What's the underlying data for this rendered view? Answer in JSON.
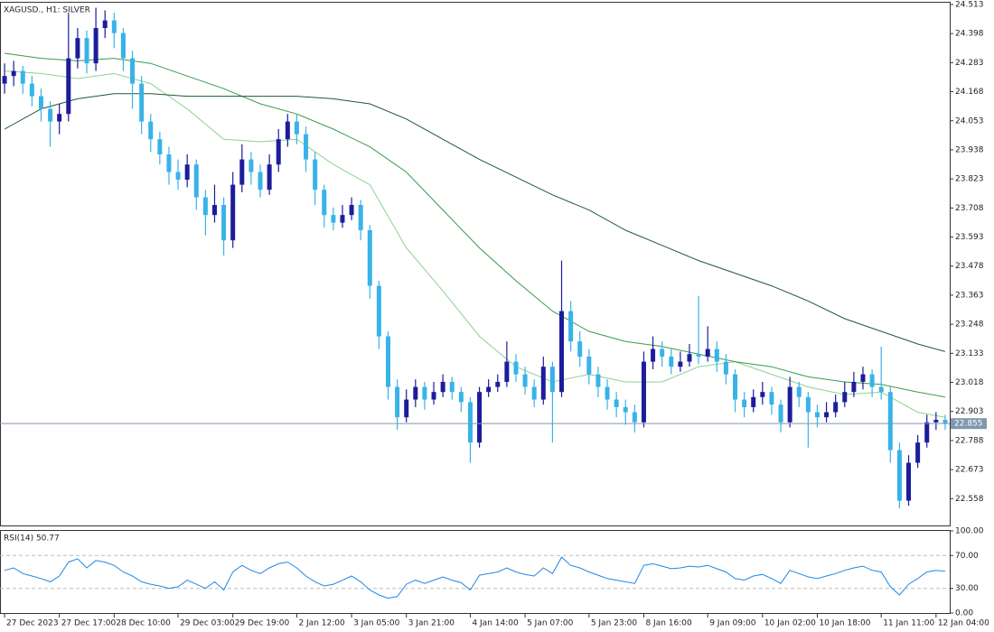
{
  "chart_data": [
    {
      "type": "candlestick",
      "title": "XAGUSD., H1: SILVER",
      "bull_color": "#1c1c9c",
      "bear_color": "#38b3e8",
      "xlim": [
        -0.5,
        103.5
      ],
      "ylim": [
        22.452,
        24.52
      ],
      "yticks": [
        24.513,
        24.398,
        24.283,
        24.168,
        24.053,
        23.938,
        23.823,
        23.708,
        23.593,
        23.478,
        23.363,
        23.248,
        23.133,
        23.018,
        22.903,
        22.788,
        22.673,
        22.558
      ],
      "last_price": 22.855,
      "last_price_color": "#7f98ad",
      "candles": [
        [
          24.2,
          24.28,
          24.16,
          24.23
        ],
        [
          24.23,
          24.29,
          24.19,
          24.25
        ],
        [
          24.25,
          24.27,
          24.16,
          24.2
        ],
        [
          24.2,
          24.23,
          24.11,
          24.15
        ],
        [
          24.15,
          24.18,
          24.05,
          24.1
        ],
        [
          24.1,
          24.13,
          23.95,
          24.05
        ],
        [
          24.05,
          24.12,
          24.0,
          24.08
        ],
        [
          24.08,
          24.48,
          24.05,
          24.3
        ],
        [
          24.3,
          24.42,
          24.26,
          24.38
        ],
        [
          24.38,
          24.41,
          24.24,
          24.28
        ],
        [
          24.28,
          24.5,
          24.25,
          24.42
        ],
        [
          24.42,
          24.49,
          24.38,
          24.45
        ],
        [
          24.45,
          24.48,
          24.34,
          24.4
        ],
        [
          24.4,
          24.42,
          24.25,
          24.3
        ],
        [
          24.3,
          24.33,
          24.1,
          24.2
        ],
        [
          24.2,
          24.23,
          24.0,
          24.05
        ],
        [
          24.05,
          24.08,
          23.93,
          23.98
        ],
        [
          23.98,
          24.01,
          23.88,
          23.92
        ],
        [
          23.92,
          23.95,
          23.8,
          23.85
        ],
        [
          23.85,
          23.9,
          23.78,
          23.82
        ],
        [
          23.82,
          23.92,
          23.79,
          23.88
        ],
        [
          23.88,
          23.9,
          23.7,
          23.75
        ],
        [
          23.75,
          23.78,
          23.6,
          23.68
        ],
        [
          23.68,
          23.8,
          23.65,
          23.72
        ],
        [
          23.72,
          23.75,
          23.52,
          23.58
        ],
        [
          23.58,
          23.85,
          23.55,
          23.8
        ],
        [
          23.8,
          23.96,
          23.77,
          23.9
        ],
        [
          23.9,
          23.93,
          23.8,
          23.85
        ],
        [
          23.85,
          23.88,
          23.75,
          23.78
        ],
        [
          23.78,
          23.92,
          23.76,
          23.88
        ],
        [
          23.88,
          24.02,
          23.85,
          23.98
        ],
        [
          23.98,
          24.08,
          23.95,
          24.05
        ],
        [
          24.05,
          24.08,
          23.96,
          24.0
        ],
        [
          24.0,
          24.03,
          23.85,
          23.9
        ],
        [
          23.9,
          23.93,
          23.72,
          23.78
        ],
        [
          23.78,
          23.8,
          23.63,
          23.68
        ],
        [
          23.68,
          23.71,
          23.62,
          23.65
        ],
        [
          23.65,
          23.72,
          23.63,
          23.68
        ],
        [
          23.68,
          23.75,
          23.66,
          23.72
        ],
        [
          23.72,
          23.74,
          23.58,
          23.62
        ],
        [
          23.62,
          23.64,
          23.35,
          23.4
        ],
        [
          23.4,
          23.42,
          23.15,
          23.2
        ],
        [
          23.2,
          23.22,
          22.95,
          23.0
        ],
        [
          23.0,
          23.03,
          22.83,
          22.88
        ],
        [
          22.88,
          22.99,
          22.86,
          22.95
        ],
        [
          22.95,
          23.03,
          22.92,
          23.0
        ],
        [
          23.0,
          23.02,
          22.91,
          22.95
        ],
        [
          22.95,
          23.02,
          22.93,
          22.98
        ],
        [
          22.98,
          23.05,
          22.96,
          23.02
        ],
        [
          23.02,
          23.04,
          22.95,
          22.98
        ],
        [
          22.98,
          23.0,
          22.9,
          22.94
        ],
        [
          22.94,
          22.96,
          22.7,
          22.78
        ],
        [
          22.78,
          23.0,
          22.76,
          22.98
        ],
        [
          22.98,
          23.03,
          22.96,
          23.0
        ],
        [
          23.0,
          23.05,
          22.98,
          23.02
        ],
        [
          23.02,
          23.18,
          23.0,
          23.1
        ],
        [
          23.1,
          23.13,
          23.02,
          23.05
        ],
        [
          23.05,
          23.08,
          22.97,
          23.0
        ],
        [
          23.0,
          23.03,
          22.92,
          22.95
        ],
        [
          22.95,
          23.12,
          22.93,
          23.08
        ],
        [
          23.08,
          23.1,
          22.78,
          22.98
        ],
        [
          22.98,
          23.5,
          22.96,
          23.3
        ],
        [
          23.3,
          23.34,
          23.14,
          23.18
        ],
        [
          23.18,
          23.22,
          23.08,
          23.12
        ],
        [
          23.12,
          23.15,
          23.01,
          23.05
        ],
        [
          23.05,
          23.08,
          22.96,
          23.0
        ],
        [
          23.0,
          23.03,
          22.91,
          22.95
        ],
        [
          22.95,
          22.98,
          22.88,
          22.92
        ],
        [
          22.92,
          22.95,
          22.85,
          22.9
        ],
        [
          22.9,
          22.93,
          22.82,
          22.86
        ],
        [
          22.86,
          23.14,
          22.84,
          23.1
        ],
        [
          23.1,
          23.2,
          23.07,
          23.15
        ],
        [
          23.15,
          23.18,
          23.08,
          23.12
        ],
        [
          23.12,
          23.15,
          23.05,
          23.08
        ],
        [
          23.08,
          23.14,
          23.06,
          23.1
        ],
        [
          23.1,
          23.17,
          23.08,
          23.13
        ],
        [
          23.13,
          23.36,
          23.09,
          23.12
        ],
        [
          23.12,
          23.24,
          23.1,
          23.15
        ],
        [
          23.15,
          23.18,
          23.06,
          23.1
        ],
        [
          23.1,
          23.13,
          23.01,
          23.05
        ],
        [
          23.05,
          23.07,
          22.9,
          22.95
        ],
        [
          22.95,
          22.98,
          22.88,
          22.92
        ],
        [
          22.92,
          22.99,
          22.9,
          22.96
        ],
        [
          22.96,
          23.02,
          22.93,
          22.98
        ],
        [
          22.98,
          23.0,
          22.89,
          22.93
        ],
        [
          22.93,
          22.95,
          22.82,
          22.86
        ],
        [
          22.86,
          23.04,
          22.84,
          23.0
        ],
        [
          23.0,
          23.02,
          22.92,
          22.96
        ],
        [
          22.96,
          22.98,
          22.76,
          22.9
        ],
        [
          22.9,
          22.93,
          22.84,
          22.88
        ],
        [
          22.88,
          22.94,
          22.86,
          22.9
        ],
        [
          22.9,
          22.97,
          22.88,
          22.94
        ],
        [
          22.94,
          23.02,
          22.92,
          22.98
        ],
        [
          22.98,
          23.06,
          22.96,
          23.02
        ],
        [
          23.02,
          23.08,
          22.99,
          23.05
        ],
        [
          23.05,
          23.07,
          22.96,
          23.0
        ],
        [
          23.0,
          23.16,
          22.95,
          22.98
        ],
        [
          22.98,
          23.0,
          22.7,
          22.75
        ],
        [
          22.75,
          22.78,
          22.52,
          22.55
        ],
        [
          22.55,
          22.73,
          22.53,
          22.7
        ],
        [
          22.7,
          22.81,
          22.68,
          22.78
        ],
        [
          22.78,
          22.89,
          22.76,
          22.86
        ],
        [
          22.86,
          22.9,
          22.83,
          22.87
        ],
        [
          22.87,
          22.89,
          22.83,
          22.855
        ]
      ],
      "moving_averages": [
        {
          "color": "#8fd18f",
          "x": [
            0,
            4,
            8,
            12,
            16,
            20,
            24,
            28,
            32,
            36,
            40,
            44,
            48,
            52,
            56,
            60,
            64,
            68,
            72,
            76,
            80,
            84,
            88,
            92,
            96,
            100,
            103
          ],
          "values": [
            24.25,
            24.24,
            24.22,
            24.24,
            24.2,
            24.1,
            23.98,
            23.97,
            23.98,
            23.88,
            23.8,
            23.55,
            23.38,
            23.2,
            23.08,
            23.02,
            23.05,
            23.02,
            23.02,
            23.08,
            23.1,
            23.05,
            23.0,
            22.97,
            22.98,
            22.9,
            22.88
          ]
        },
        {
          "color": "#3a9a4a",
          "x": [
            0,
            4,
            8,
            12,
            16,
            20,
            24,
            28,
            32,
            36,
            40,
            44,
            48,
            52,
            56,
            60,
            64,
            68,
            72,
            76,
            80,
            84,
            88,
            92,
            96,
            100,
            103
          ],
          "values": [
            24.32,
            24.3,
            24.29,
            24.3,
            24.28,
            24.23,
            24.18,
            24.12,
            24.08,
            24.02,
            23.95,
            23.85,
            23.7,
            23.55,
            23.42,
            23.3,
            23.22,
            23.18,
            23.16,
            23.13,
            23.1,
            23.08,
            23.04,
            23.02,
            23.01,
            22.98,
            22.96
          ]
        },
        {
          "color": "#1f5a30",
          "x": [
            0,
            4,
            8,
            12,
            16,
            20,
            24,
            28,
            32,
            36,
            40,
            44,
            48,
            52,
            56,
            60,
            64,
            68,
            72,
            76,
            80,
            84,
            88,
            92,
            96,
            100,
            103
          ],
          "values": [
            24.02,
            24.1,
            24.14,
            24.16,
            24.16,
            24.15,
            24.15,
            24.15,
            24.15,
            24.14,
            24.12,
            24.06,
            23.98,
            23.9,
            23.83,
            23.76,
            23.7,
            23.62,
            23.56,
            23.5,
            23.45,
            23.4,
            23.34,
            23.27,
            23.22,
            23.17,
            23.14
          ]
        }
      ]
    },
    {
      "type": "line",
      "title": "RSI(14) 50.77",
      "color": "#1e88e5",
      "grid": true,
      "xlim": [
        -0.5,
        103.5
      ],
      "ylim": [
        0,
        100
      ],
      "yticks": [
        {
          "value": 100,
          "label": "100.00"
        },
        {
          "value": 70,
          "label": "70.00"
        },
        {
          "value": 30,
          "label": "30.00"
        },
        {
          "value": 0,
          "label": "0.00"
        }
      ],
      "xticks": [
        {
          "value": 0,
          "label": "27 Dec 2023"
        },
        {
          "value": 6,
          "label": "27 Dec 17:00"
        },
        {
          "value": 12,
          "label": "28 Dec 10:00"
        },
        {
          "value": 19,
          "label": "29 Dec 03:00"
        },
        {
          "value": 25,
          "label": "29 Dec 19:00"
        },
        {
          "value": 32,
          "label": "2 Jan 12:00"
        },
        {
          "value": 38,
          "label": "3 Jan 05:00"
        },
        {
          "value": 44,
          "label": "3 Jan 21:00"
        },
        {
          "value": 51,
          "label": "4 Jan 14:00"
        },
        {
          "value": 57,
          "label": "5 Jan 07:00"
        },
        {
          "value": 64,
          "label": "5 Jan 23:00"
        },
        {
          "value": 70,
          "label": "8 Jan 16:00"
        },
        {
          "value": 77,
          "label": "9 Jan 09:00"
        },
        {
          "value": 83,
          "label": "10 Jan 02:00"
        },
        {
          "value": 89,
          "label": "10 Jan 18:00"
        },
        {
          "value": 96,
          "label": "11 Jan 11:00"
        },
        {
          "value": 102,
          "label": "12 Jan 04:00"
        }
      ],
      "values": [
        52,
        55,
        48,
        45,
        42,
        38,
        45,
        62,
        66,
        55,
        64,
        62,
        58,
        50,
        45,
        38,
        35,
        33,
        30,
        32,
        40,
        35,
        30,
        38,
        28,
        50,
        58,
        52,
        48,
        55,
        60,
        62,
        55,
        45,
        38,
        33,
        35,
        40,
        45,
        38,
        28,
        22,
        18,
        20,
        35,
        40,
        36,
        40,
        44,
        40,
        37,
        28,
        46,
        48,
        50,
        55,
        50,
        47,
        45,
        55,
        48,
        68,
        58,
        55,
        50,
        46,
        42,
        40,
        38,
        36,
        58,
        60,
        57,
        54,
        55,
        57,
        56,
        58,
        54,
        50,
        42,
        40,
        45,
        47,
        42,
        36,
        52,
        48,
        44,
        42,
        45,
        48,
        52,
        55,
        57,
        52,
        50,
        32,
        22,
        35,
        42,
        50,
        52,
        50.77
      ]
    }
  ]
}
